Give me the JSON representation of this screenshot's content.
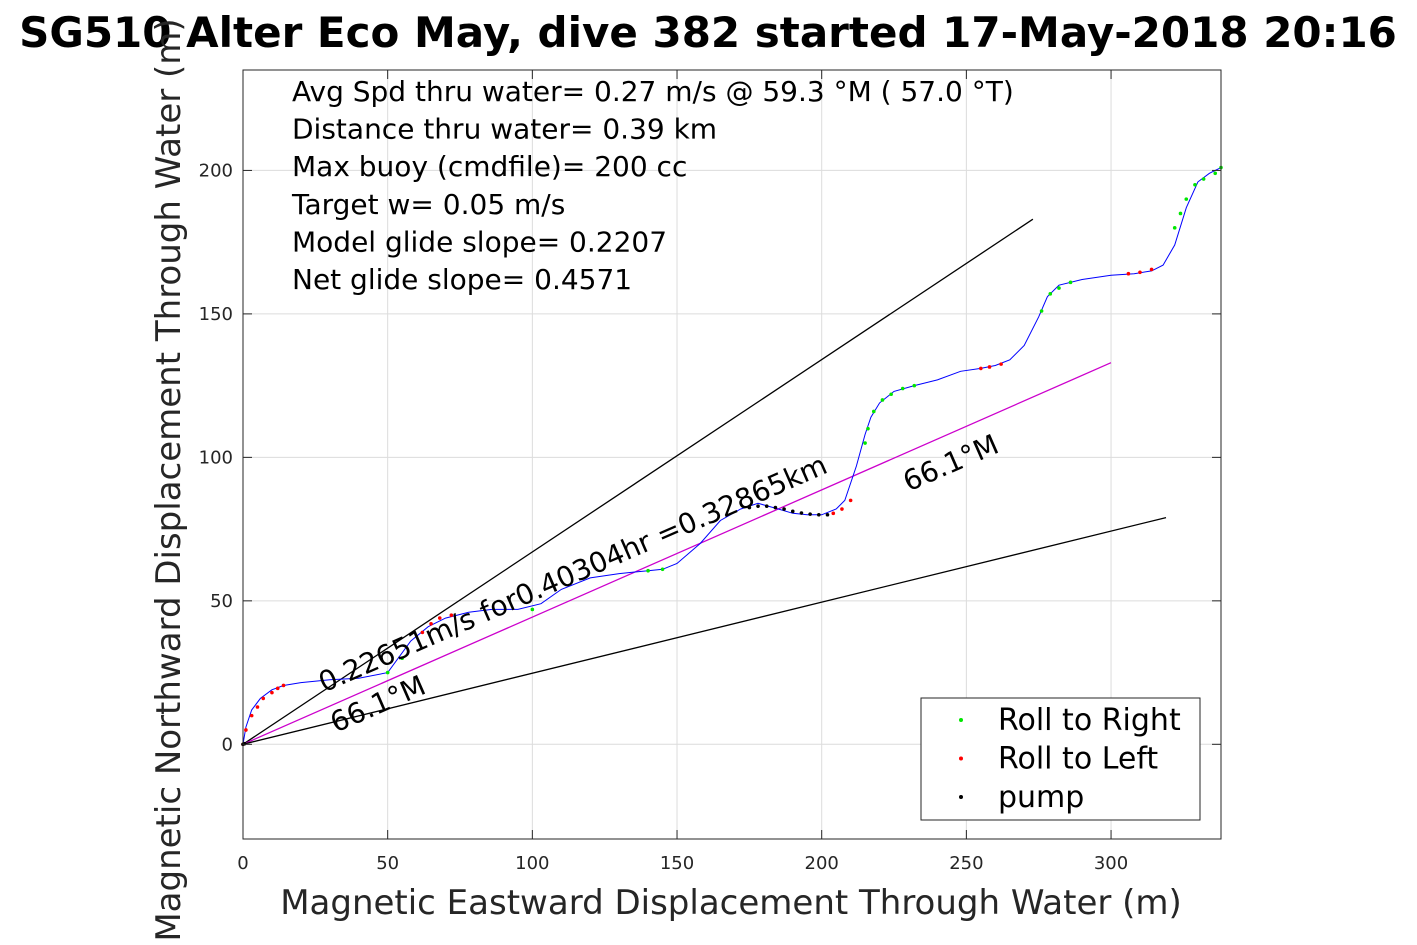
{
  "chart_data": {
    "type": "line",
    "title": "SG510 Alter Eco May, dive 382 started 17-May-2018 20:16",
    "xlabel": "Magnetic Eastward Displacement Through Water (m)",
    "ylabel": "Magnetic Northward Displacement Through Water (m)",
    "xlim": [
      0,
      338
    ],
    "ylim": [
      -33,
      235
    ],
    "xticks": [
      0,
      50,
      100,
      150,
      200,
      250,
      300
    ],
    "yticks": [
      0,
      50,
      100,
      150,
      200
    ],
    "grid": true,
    "legend_placement": "bottom-right",
    "info_lines": [
      "Avg Spd thru water=  0.27 m/s @  59.3 °M ( 57.0 °T)",
      "Distance thru water=  0.39 km",
      "Max buoy (cmdfile)= 200 cc",
      "Target w= 0.05 m/s",
      "Model glide slope= 0.2207",
      "Net glide slope= 0.4571"
    ],
    "annotations": [
      {
        "text": "0.22651m/s for0.40304hr =0.32865km",
        "x": 28,
        "y": 18,
        "angle_deg": 23.6
      },
      {
        "text": "66.1°M",
        "x": 32,
        "y": 4,
        "angle_deg": 23.6
      },
      {
        "text": "66.1°M",
        "x": 230,
        "y": 88,
        "angle_deg": 23.6
      }
    ],
    "reference_lines": [
      {
        "name": "upper-bound",
        "x": [
          0,
          273
        ],
        "y": [
          0,
          183
        ],
        "color": "#000000"
      },
      {
        "name": "heading-line",
        "x": [
          0,
          300
        ],
        "y": [
          0,
          133
        ],
        "color": "#cc00cc"
      },
      {
        "name": "lower-bound",
        "x": [
          0,
          319
        ],
        "y": [
          0,
          79
        ],
        "color": "#000000"
      }
    ],
    "track": {
      "color": "#0000ff",
      "x": [
        0,
        1,
        3,
        6,
        10,
        14,
        20,
        30,
        40,
        50,
        58,
        64,
        70,
        78,
        86,
        95,
        103,
        110,
        120,
        130,
        140,
        145,
        150,
        158,
        165,
        172,
        178,
        185,
        190,
        195,
        200,
        205,
        208,
        212,
        215,
        217,
        220,
        225,
        232,
        240,
        248,
        255,
        260,
        265,
        270,
        275,
        278,
        282,
        290,
        300,
        308,
        314,
        318,
        322,
        326,
        330,
        334,
        338
      ],
      "y": [
        0,
        6,
        12,
        16,
        19,
        20.5,
        21.5,
        22.5,
        23,
        25,
        36,
        41,
        44,
        46,
        47,
        47,
        49,
        54,
        58,
        59.5,
        60.5,
        61,
        63,
        70,
        78,
        82,
        84,
        82,
        80.5,
        80,
        80,
        82,
        85,
        97,
        108,
        114,
        119,
        123,
        125,
        127,
        130,
        131,
        132,
        134,
        139,
        149,
        156,
        160,
        162,
        163.5,
        164,
        165,
        167,
        174,
        187,
        196,
        199,
        201
      ]
    },
    "series": [
      {
        "name": "Roll to Right",
        "marker": "dot",
        "color": "#00e600",
        "x": [
          50,
          55,
          100,
          140,
          145,
          215,
          216,
          218,
          221,
          224,
          228,
          232,
          276,
          279,
          282,
          286,
          322,
          324,
          326,
          329,
          332,
          336,
          338
        ],
        "y": [
          25,
          30,
          47,
          60.5,
          61,
          105,
          110,
          116,
          120,
          122,
          124,
          125,
          151,
          157,
          159,
          161,
          180,
          185,
          190,
          195,
          197,
          199,
          201
        ]
      },
      {
        "name": "Roll to Left",
        "marker": "dot",
        "color": "#ff0000",
        "x": [
          0,
          1,
          3,
          5,
          7,
          10,
          12,
          14,
          62,
          65,
          68,
          72,
          204,
          207,
          210,
          255,
          258,
          262,
          306,
          310,
          314
        ],
        "y": [
          0,
          5,
          10,
          13,
          16,
          18,
          19.5,
          20.5,
          39,
          42,
          44,
          45,
          80.5,
          82,
          85,
          131,
          131.5,
          132.5,
          164,
          164.5,
          165.5
        ]
      },
      {
        "name": "pump",
        "marker": "dot",
        "color": "#000000",
        "x": [
          0,
          0.5,
          175,
          178,
          181,
          184,
          187,
          190,
          193,
          196,
          199,
          202
        ],
        "y": [
          0,
          0.2,
          82.5,
          83,
          83,
          82.5,
          82,
          81.2,
          80.6,
          80.2,
          80,
          80
        ]
      }
    ]
  }
}
